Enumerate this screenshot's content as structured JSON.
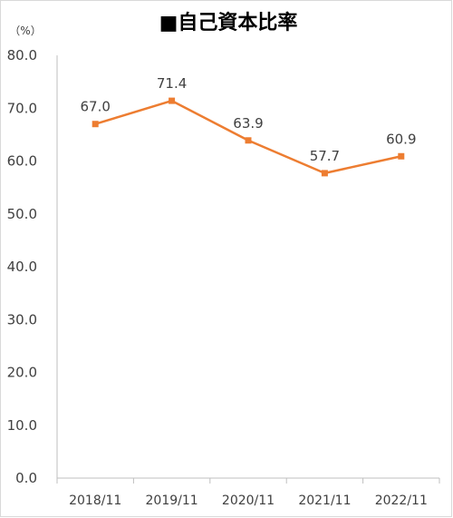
{
  "chart_data": {
    "type": "line",
    "title": "■自己資本比率",
    "unit_label": "（%）",
    "categories": [
      "2018/11",
      "2019/11",
      "2020/11",
      "2021/11",
      "2022/11"
    ],
    "series": [
      {
        "values": [
          67.0,
          71.4,
          63.9,
          57.7,
          60.9
        ]
      }
    ],
    "data_labels": [
      "67.0",
      "71.4",
      "63.9",
      "57.7",
      "60.9"
    ],
    "ylim": [
      0,
      80
    ],
    "y_ticks": [
      "0.0",
      "10.0",
      "20.0",
      "30.0",
      "40.0",
      "50.0",
      "60.0",
      "70.0",
      "80.0"
    ],
    "grid": false,
    "line_color": "#ED7D31",
    "axis_color": "#bfbfbf"
  }
}
